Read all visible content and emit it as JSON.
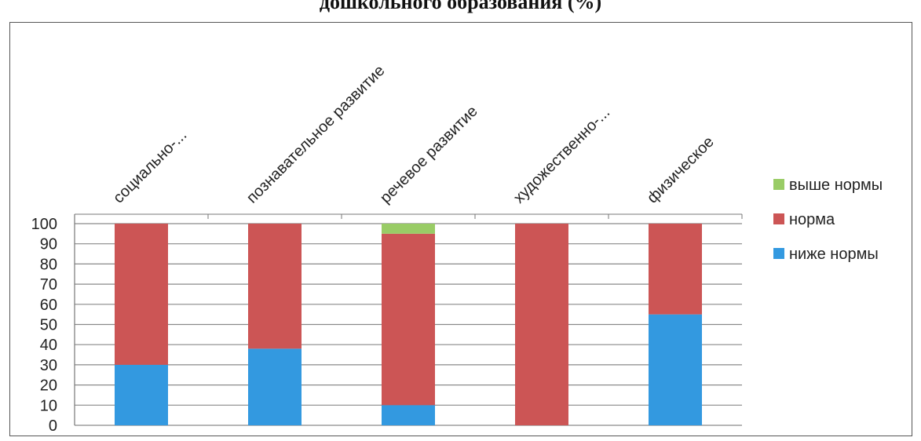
{
  "title": "дошкольного образования (%)",
  "chart_data": {
    "type": "bar",
    "stacked": true,
    "title": "дошкольного образования (%)",
    "categories": [
      "социально-...",
      "познавательное развитие",
      "речевое развитие",
      "художественно-...",
      "физическое"
    ],
    "series": [
      {
        "name": "ниже нормы",
        "color": "#3399e0",
        "values": [
          30,
          38,
          10,
          0,
          55
        ]
      },
      {
        "name": "норма",
        "color": "#cc5555",
        "values": [
          70,
          62,
          85,
          100,
          45
        ]
      },
      {
        "name": "выше нормы",
        "color": "#99cc66",
        "values": [
          0,
          0,
          5,
          0,
          0
        ]
      }
    ],
    "legend_order": [
      "выше нормы",
      "норма",
      "ниже нормы"
    ],
    "legend_position": "right",
    "ylim": [
      0,
      100
    ],
    "yticks": [
      0,
      10,
      20,
      30,
      40,
      50,
      60,
      70,
      80,
      90,
      100
    ],
    "grid": true,
    "xlabel": "",
    "ylabel": ""
  }
}
